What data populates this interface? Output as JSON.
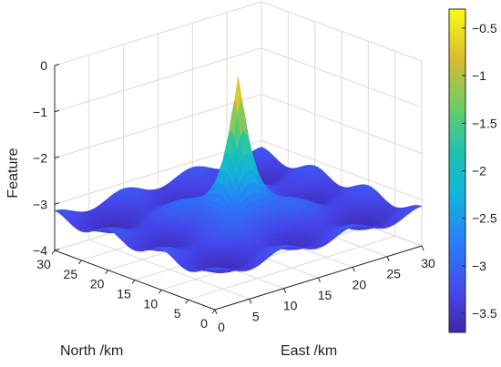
{
  "chart_data": {
    "type": "surface",
    "xlabel": "East /km",
    "ylabel": "North /km",
    "zlabel": "Feature",
    "x_ticks": [
      0,
      5,
      10,
      15,
      20,
      25,
      30
    ],
    "y_ticks": [
      0,
      5,
      10,
      15,
      20,
      25,
      30
    ],
    "z_ticks": [
      0,
      -1,
      -2,
      -3,
      -4
    ],
    "z_tick_labels": [
      "0",
      "−1",
      "−2",
      "−3",
      "−4"
    ],
    "xlim": [
      0,
      30
    ],
    "ylim": [
      0,
      30
    ],
    "zlim": [
      -4,
      0
    ],
    "grid": true,
    "colormap": "parula",
    "surface": {
      "peak_location": [
        15,
        15
      ],
      "peak_value": -0.3,
      "baseline_value": -3.4,
      "ripple_period_km": 10,
      "ripple_amplitude": 0.12
    },
    "colorbar": {
      "range": [
        -3.7,
        -0.3
      ],
      "ticks": [
        -0.5,
        -1,
        -1.5,
        -2,
        -2.5,
        -3,
        -3.5
      ],
      "tick_labels": [
        "−0.5",
        "−1",
        "−1.5",
        "−2",
        "−2.5",
        "−3",
        "−3.5"
      ],
      "location": "right"
    }
  }
}
